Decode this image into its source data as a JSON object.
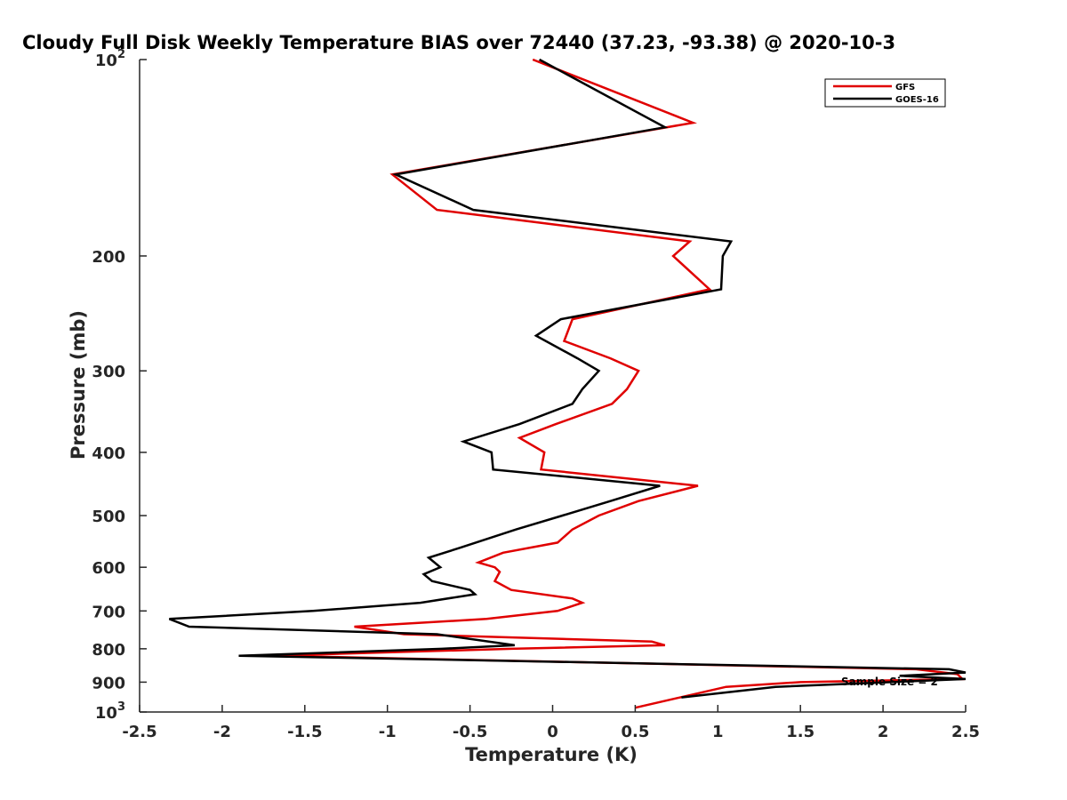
{
  "chart_data": {
    "type": "line",
    "title": "Cloudy Full Disk Weekly Temperature BIAS over 72440 (37.23, -93.38) @ 2020-10-3",
    "xlabel": "Temperature (K)",
    "ylabel": "Pressure (mb)",
    "xlim": [
      -2.5,
      2.5
    ],
    "ylim": [
      100,
      1000
    ],
    "y_scale": "log",
    "y_reversed": true,
    "x_ticks": [
      "-2.5",
      "-2",
      "-1.5",
      "-1",
      "-0.5",
      "0",
      "0.5",
      "1",
      "1.5",
      "2",
      "2.5"
    ],
    "y_ticks": [
      {
        "value": 100,
        "base": "10",
        "exp": "2"
      },
      {
        "value": 200,
        "label": "200"
      },
      {
        "value": 300,
        "label": "300"
      },
      {
        "value": 400,
        "label": "400"
      },
      {
        "value": 500,
        "label": "500"
      },
      {
        "value": 600,
        "label": "600"
      },
      {
        "value": 700,
        "label": "700"
      },
      {
        "value": 800,
        "label": "800"
      },
      {
        "value": 900,
        "label": "900"
      },
      {
        "value": 1000,
        "base": "10",
        "exp": "3"
      }
    ],
    "legend_position": "top-right",
    "annotation": "Sample Size = 2",
    "series": [
      {
        "name": "GFS",
        "color": "#e00000",
        "points": [
          [
            -0.12,
            100
          ],
          [
            0.85,
            125
          ],
          [
            -0.97,
            150
          ],
          [
            -0.7,
            170
          ],
          [
            0.83,
            190
          ],
          [
            0.73,
            200
          ],
          [
            0.95,
            225
          ],
          [
            0.12,
            250
          ],
          [
            0.07,
            270
          ],
          [
            0.35,
            287
          ],
          [
            0.52,
            300
          ],
          [
            0.45,
            320
          ],
          [
            0.36,
            337
          ],
          [
            0.02,
            362
          ],
          [
            -0.2,
            380
          ],
          [
            -0.05,
            400
          ],
          [
            -0.07,
            425
          ],
          [
            0.88,
            450
          ],
          [
            0.52,
            475
          ],
          [
            0.28,
            500
          ],
          [
            0.12,
            525
          ],
          [
            0.03,
            550
          ],
          [
            -0.3,
            570
          ],
          [
            -0.45,
            590
          ],
          [
            -0.35,
            600
          ],
          [
            -0.32,
            610
          ],
          [
            -0.35,
            630
          ],
          [
            -0.25,
            650
          ],
          [
            0.12,
            670
          ],
          [
            0.18,
            680
          ],
          [
            0.03,
            700
          ],
          [
            -0.4,
            720
          ],
          [
            -1.2,
            740
          ],
          [
            -0.9,
            760
          ],
          [
            0.6,
            780
          ],
          [
            0.68,
            790
          ],
          [
            -0.25,
            800
          ],
          [
            -1.7,
            820
          ],
          [
            2.2,
            860
          ],
          [
            2.45,
            875
          ],
          [
            2.48,
            890
          ],
          [
            1.5,
            900
          ],
          [
            1.05,
            915
          ],
          [
            0.5,
            985
          ]
        ]
      },
      {
        "name": "GOES-16",
        "color": "#000000",
        "points": [
          [
            -0.08,
            100
          ],
          [
            0.68,
            127
          ],
          [
            -0.95,
            150
          ],
          [
            -0.48,
            170
          ],
          [
            1.08,
            190
          ],
          [
            1.03,
            200
          ],
          [
            1.02,
            225
          ],
          [
            0.05,
            250
          ],
          [
            -0.1,
            265
          ],
          [
            0.15,
            287
          ],
          [
            0.28,
            300
          ],
          [
            0.18,
            320
          ],
          [
            0.12,
            337
          ],
          [
            -0.2,
            362
          ],
          [
            -0.54,
            385
          ],
          [
            -0.37,
            400
          ],
          [
            -0.36,
            425
          ],
          [
            0.65,
            450
          ],
          [
            0.35,
            475
          ],
          [
            0.06,
            500
          ],
          [
            -0.22,
            525
          ],
          [
            -0.56,
            560
          ],
          [
            -0.75,
            580
          ],
          [
            -0.68,
            600
          ],
          [
            -0.78,
            615
          ],
          [
            -0.73,
            630
          ],
          [
            -0.5,
            650
          ],
          [
            -0.47,
            660
          ],
          [
            -0.8,
            680
          ],
          [
            -1.45,
            700
          ],
          [
            -2.32,
            720
          ],
          [
            -2.2,
            740
          ],
          [
            -0.7,
            760
          ],
          [
            -0.23,
            790
          ],
          [
            -0.67,
            800
          ],
          [
            -1.9,
            820
          ],
          [
            2.4,
            860
          ],
          [
            2.5,
            870
          ],
          [
            2.1,
            880
          ],
          [
            2.5,
            890
          ],
          [
            1.35,
            915
          ],
          [
            0.78,
            950
          ]
        ]
      }
    ]
  }
}
